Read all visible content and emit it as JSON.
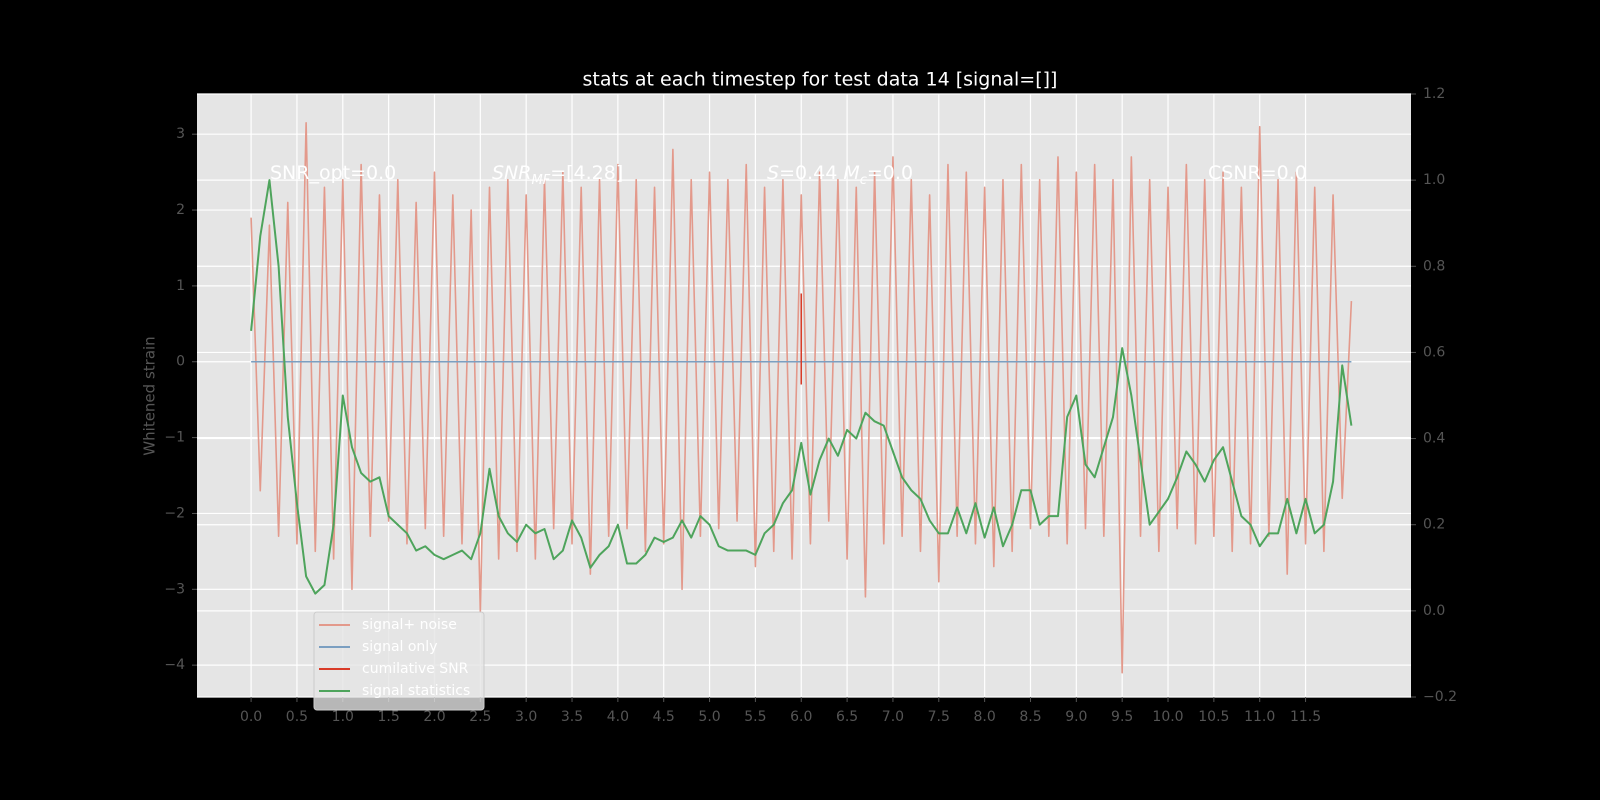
{
  "chart_data": {
    "type": "line",
    "title": "stats at each timestep for test data 14 [signal=[]]",
    "y_label": "Whitened strain",
    "annotations": [
      [
        {
          "text": "SNR_opt=0.0"
        }
      ],
      [
        {
          "text": "SNR",
          "style": "italic"
        },
        {
          "text": "MF",
          "style": "subscript"
        },
        {
          "text": "=[4.28]"
        }
      ],
      [
        {
          "text": "S",
          "style": "italic"
        },
        {
          "text": "=0.44   "
        },
        {
          "text": "M",
          "style": "italic"
        },
        {
          "text": "c",
          "style": "subscript"
        },
        {
          "text": "=0.0"
        }
      ],
      [
        {
          "text": "CSNR=0.0"
        }
      ]
    ],
    "x": [
      0.0,
      0.1,
      0.2,
      0.3,
      0.4,
      0.5,
      0.6,
      0.7,
      0.8,
      0.9,
      1.0,
      1.1,
      1.2,
      1.3,
      1.4,
      1.5,
      1.6,
      1.7,
      1.8,
      1.9,
      2.0,
      2.1,
      2.2,
      2.3,
      2.4,
      2.5,
      2.6,
      2.7,
      2.8,
      2.9,
      3.0,
      3.1,
      3.2,
      3.3,
      3.4,
      3.5,
      3.6,
      3.7,
      3.8,
      3.9,
      4.0,
      4.1,
      4.2,
      4.3,
      4.4,
      4.5,
      4.6,
      4.7,
      4.8,
      4.9,
      5.0,
      5.1,
      5.2,
      5.3,
      5.4,
      5.5,
      5.6,
      5.7,
      5.8,
      5.9,
      6.0,
      6.1,
      6.2,
      6.3,
      6.4,
      6.5,
      6.6,
      6.7,
      6.8,
      6.9,
      7.0,
      7.1,
      7.2,
      7.3,
      7.4,
      7.5,
      7.6,
      7.7,
      7.8,
      7.9,
      8.0,
      8.1,
      8.2,
      8.3,
      8.4,
      8.5,
      8.6,
      8.7,
      8.8,
      8.9,
      9.0,
      9.1,
      9.2,
      9.3,
      9.4,
      9.5,
      9.6,
      9.7,
      9.8,
      9.9,
      10.0,
      10.1,
      10.2,
      10.3,
      10.4,
      10.5,
      10.6,
      10.7,
      10.8,
      10.9,
      11.0,
      11.1,
      11.2,
      11.3,
      11.4,
      11.5,
      11.6,
      11.7,
      11.8,
      11.9,
      12.0
    ],
    "xlim": [
      -0.59,
      12.65
    ],
    "xticks": [
      {
        "value": 0,
        "label": "0.0"
      },
      0.5,
      {
        "value": 1,
        "label": "1.0"
      },
      1.5,
      {
        "value": 2,
        "label": "2.0"
      },
      2.5,
      {
        "value": 3,
        "label": "3.0"
      },
      3.5,
      {
        "value": 4,
        "label": "4.0"
      },
      4.5,
      {
        "value": 5,
        "label": "5.0"
      },
      5.5,
      {
        "value": 6,
        "label": "6.0"
      },
      6.5,
      {
        "value": 7,
        "label": "7.0"
      },
      7.5,
      {
        "value": 8,
        "label": "8.0"
      },
      8.5,
      {
        "value": 9,
        "label": "9.0"
      },
      9.5,
      {
        "value": 10,
        "label": "10.0"
      },
      10.5,
      {
        "value": 11,
        "label": "11.0"
      },
      11.5
    ],
    "ylim": [
      -4.42,
      3.53
    ],
    "yticks": [
      {
        "value": -4,
        "label": "−4"
      },
      {
        "value": -3,
        "label": "−3"
      },
      {
        "value": -2,
        "label": "−2"
      },
      {
        "value": -1,
        "label": "−1"
      },
      0,
      1,
      2,
      3
    ],
    "y2lim": [
      -0.2,
      1.2
    ],
    "y2ticks": [
      {
        "value": -0.2,
        "label": "−0.2"
      },
      {
        "value": 0,
        "label": "0.0"
      },
      0.2,
      0.4,
      0.6,
      0.8,
      {
        "value": 1,
        "label": "1.0"
      },
      1.2
    ],
    "grid": true,
    "legend": "lower left",
    "series": [
      {
        "name": "signal+ noise",
        "color": "#e3998b",
        "values": [
          1.9,
          -1.7,
          1.8,
          -2.3,
          2.1,
          -2.4,
          3.15,
          -2.5,
          2.3,
          -2.6,
          2.4,
          -3.0,
          2.6,
          -2.3,
          2.2,
          -2.1,
          2.4,
          -2.4,
          2.1,
          -2.2,
          2.5,
          -2.3,
          2.2,
          -2.4,
          2.0,
          -3.3,
          2.3,
          -2.6,
          2.4,
          -2.5,
          2.2,
          -2.6,
          2.4,
          -2.2,
          2.5,
          -2.4,
          2.3,
          -2.8,
          2.4,
          -2.3,
          2.6,
          -2.2,
          2.4,
          -2.5,
          2.3,
          -2.4,
          2.8,
          -3.0,
          2.4,
          -2.3,
          2.5,
          -2.2,
          2.4,
          -2.1,
          2.6,
          -2.7,
          2.3,
          -2.5,
          2.4,
          -2.6,
          2.2,
          -2.4,
          2.5,
          -2.1,
          2.4,
          -2.6,
          2.3,
          -3.1,
          2.5,
          -2.4,
          2.7,
          -2.3,
          2.4,
          -2.5,
          2.2,
          -2.9,
          2.6,
          -2.3,
          2.5,
          -2.4,
          2.3,
          -2.7,
          2.4,
          -2.5,
          2.6,
          -2.2,
          2.4,
          -2.3,
          2.7,
          -2.4,
          2.5,
          -2.2,
          2.6,
          -2.3,
          2.4,
          -4.1,
          2.7,
          -2.3,
          2.4,
          -2.5,
          2.3,
          -2.2,
          2.6,
          -2.4,
          2.4,
          -2.3,
          2.5,
          -2.5,
          2.3,
          -2.4,
          3.1,
          -2.3,
          2.4,
          -2.8,
          2.5,
          -2.4,
          2.3,
          -2.5,
          2.2,
          -1.8,
          0.8
        ]
      },
      {
        "name": "signal only",
        "color": "#7b9fc1",
        "x": [
          0.0,
          12.0
        ],
        "values": [
          0,
          0
        ]
      },
      {
        "name": "cumilative SNR",
        "color": "#d93b28",
        "x": [
          6.0,
          6.0
        ],
        "values": [
          0.9,
          -0.3
        ]
      },
      {
        "name": "signal statistics",
        "color": "#4ea45c",
        "axis": "y2",
        "values": [
          0.65,
          0.87,
          1.0,
          0.8,
          0.45,
          0.25,
          0.08,
          0.04,
          0.06,
          0.2,
          0.5,
          0.38,
          0.32,
          0.3,
          0.31,
          0.22,
          0.2,
          0.18,
          0.14,
          0.15,
          0.13,
          0.12,
          0.13,
          0.14,
          0.12,
          0.18,
          0.33,
          0.22,
          0.18,
          0.16,
          0.2,
          0.18,
          0.19,
          0.12,
          0.14,
          0.21,
          0.17,
          0.1,
          0.13,
          0.15,
          0.2,
          0.11,
          0.11,
          0.13,
          0.17,
          0.16,
          0.17,
          0.21,
          0.17,
          0.22,
          0.2,
          0.15,
          0.14,
          0.14,
          0.14,
          0.13,
          0.18,
          0.2,
          0.25,
          0.28,
          0.39,
          0.27,
          0.35,
          0.4,
          0.36,
          0.42,
          0.4,
          0.46,
          0.44,
          0.43,
          0.37,
          0.31,
          0.28,
          0.26,
          0.21,
          0.18,
          0.18,
          0.24,
          0.18,
          0.25,
          0.17,
          0.24,
          0.15,
          0.2,
          0.28,
          0.28,
          0.2,
          0.22,
          0.22,
          0.45,
          0.5,
          0.34,
          0.31,
          0.38,
          0.45,
          0.61,
          0.5,
          0.35,
          0.2,
          0.23,
          0.26,
          0.31,
          0.37,
          0.34,
          0.3,
          0.35,
          0.38,
          0.3,
          0.22,
          0.2,
          0.15,
          0.18,
          0.18,
          0.26,
          0.18,
          0.26,
          0.18,
          0.2,
          0.3,
          0.57,
          0.43
        ]
      }
    ]
  }
}
